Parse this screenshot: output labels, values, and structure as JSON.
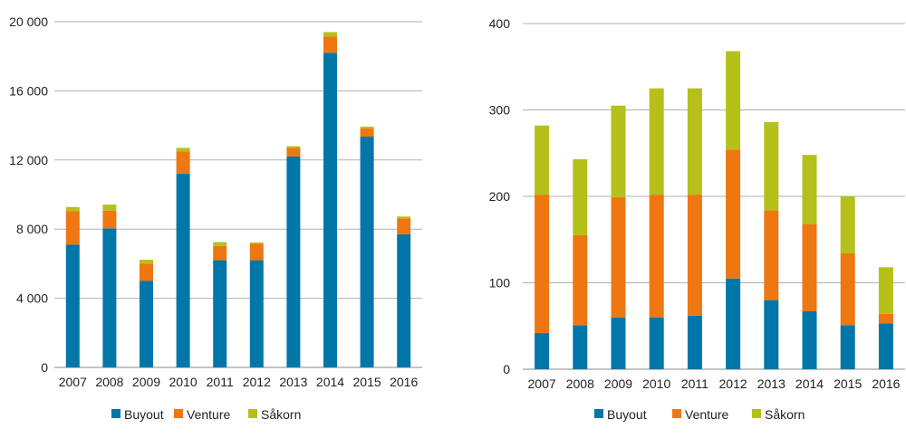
{
  "colors": {
    "Buyout": "#0077a8",
    "Venture": "#ee7711",
    "Såkorn": "#b5c01a",
    "grid": "#b0b0b0"
  },
  "chart_data": [
    {
      "type": "bar",
      "stacked": true,
      "categories": [
        "2007",
        "2008",
        "2009",
        "2010",
        "2011",
        "2012",
        "2013",
        "2014",
        "2015",
        "2016"
      ],
      "ylim": [
        0,
        20000
      ],
      "yticks": [
        0,
        4000,
        8000,
        12000,
        16000,
        20000
      ],
      "ytick_labels": [
        "0",
        "4 000",
        "8 000",
        "12 000",
        "16 000",
        "20 000"
      ],
      "grid": true,
      "legend": "bottom",
      "series": [
        {
          "name": "Buyout",
          "values": [
            7100,
            8050,
            5000,
            11200,
            6200,
            6200,
            12200,
            18200,
            13350,
            7700
          ]
        },
        {
          "name": "Venture",
          "values": [
            1950,
            1020,
            1000,
            1300,
            820,
            950,
            500,
            950,
            480,
            920
          ]
        },
        {
          "name": "Såkorn",
          "values": [
            230,
            350,
            230,
            200,
            230,
            80,
            100,
            250,
            100,
            110
          ]
        }
      ]
    },
    {
      "type": "bar",
      "stacked": true,
      "categories": [
        "2007",
        "2008",
        "2009",
        "2010",
        "2011",
        "2012",
        "2013",
        "2014",
        "2015",
        "2016"
      ],
      "ylim": [
        0,
        400
      ],
      "yticks": [
        0,
        100,
        200,
        300,
        400
      ],
      "ytick_labels": [
        "0",
        "100",
        "200",
        "300",
        "400"
      ],
      "grid": true,
      "legend": "bottom",
      "series": [
        {
          "name": "Buyout",
          "values": [
            42,
            51,
            60,
            60,
            62,
            105,
            80,
            67,
            51,
            53
          ]
        },
        {
          "name": "Venture",
          "values": [
            160,
            104,
            139,
            142,
            140,
            149,
            104,
            101,
            83,
            11
          ]
        },
        {
          "name": "Såkorn",
          "values": [
            80,
            88,
            106,
            123,
            123,
            114,
            102,
            80,
            66,
            54
          ]
        }
      ]
    }
  ]
}
